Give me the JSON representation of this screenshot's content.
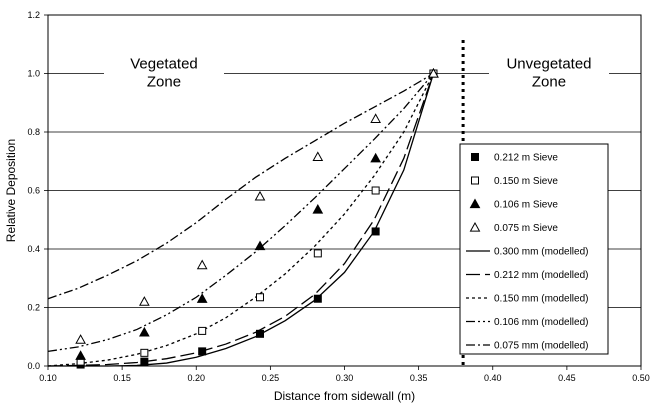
{
  "chart_data": {
    "type": "scatter",
    "xlabel": "Distance from sidewall (m)",
    "ylabel": "Relative Deposition",
    "xlim": [
      0.1,
      0.5
    ],
    "ylim": [
      0,
      1.2
    ],
    "x_ticks": [
      "0.10",
      "0.15",
      "0.20",
      "0.25",
      "0.30",
      "0.35",
      "0.40",
      "0.45",
      "0.50"
    ],
    "y_ticks": [
      "0.0",
      "0.2",
      "0.4",
      "0.6",
      "0.8",
      "1.0",
      "1.2"
    ],
    "grid": "horizontal",
    "legend_position": "right",
    "vegetation_boundary_x": 0.38,
    "zones": {
      "vegetated": [
        "Vegetated",
        "Zone"
      ],
      "unvegetated": [
        "Unvegetated",
        "Zone"
      ]
    },
    "series": [
      {
        "name": "0.212 m Sieve",
        "kind": "points",
        "marker": "filled-square",
        "x": [
          0.122,
          0.165,
          0.204,
          0.243,
          0.282,
          0.321,
          0.36
        ],
        "y": [
          0.005,
          0.015,
          0.05,
          0.11,
          0.23,
          0.46,
          1.0
        ]
      },
      {
        "name": "0.150 m Sieve",
        "kind": "points",
        "marker": "open-square",
        "x": [
          0.122,
          0.165,
          0.204,
          0.243,
          0.282,
          0.321,
          0.36
        ],
        "y": [
          0.015,
          0.045,
          0.12,
          0.235,
          0.385,
          0.6,
          1.0
        ]
      },
      {
        "name": "0.106 m Sieve",
        "kind": "points",
        "marker": "filled-triangle",
        "x": [
          0.122,
          0.165,
          0.204,
          0.243,
          0.282,
          0.321,
          0.36
        ],
        "y": [
          0.035,
          0.115,
          0.23,
          0.41,
          0.535,
          0.71,
          1.0
        ]
      },
      {
        "name": "0.075 m Sieve",
        "kind": "points",
        "marker": "open-triangle",
        "x": [
          0.122,
          0.165,
          0.204,
          0.243,
          0.282,
          0.321,
          0.36
        ],
        "y": [
          0.09,
          0.22,
          0.345,
          0.58,
          0.715,
          0.845,
          1.0
        ]
      },
      {
        "name": "0.300 mm (modelled)",
        "kind": "line",
        "dash": "",
        "x": [
          0.1,
          0.12,
          0.14,
          0.16,
          0.18,
          0.2,
          0.22,
          0.24,
          0.26,
          0.28,
          0.3,
          0.32,
          0.34,
          0.36
        ],
        "y": [
          0.0,
          0.0,
          0.0,
          0.002,
          0.01,
          0.03,
          0.06,
          0.1,
          0.155,
          0.225,
          0.32,
          0.46,
          0.67,
          1.0
        ]
      },
      {
        "name": "0.212 mm (modelled)",
        "kind": "line",
        "dash": "14,5",
        "x": [
          0.1,
          0.12,
          0.14,
          0.16,
          0.18,
          0.2,
          0.22,
          0.24,
          0.26,
          0.28,
          0.3,
          0.32,
          0.34,
          0.36
        ],
        "y": [
          0.0,
          0.002,
          0.005,
          0.012,
          0.025,
          0.045,
          0.075,
          0.115,
          0.17,
          0.245,
          0.35,
          0.5,
          0.71,
          1.0
        ]
      },
      {
        "name": "0.150 mm (modelled)",
        "kind": "line",
        "dash": "3,3",
        "x": [
          0.1,
          0.12,
          0.14,
          0.16,
          0.18,
          0.2,
          0.22,
          0.24,
          0.26,
          0.28,
          0.3,
          0.32,
          0.34,
          0.36
        ],
        "y": [
          0.0,
          0.008,
          0.02,
          0.04,
          0.07,
          0.11,
          0.165,
          0.235,
          0.315,
          0.41,
          0.52,
          0.65,
          0.8,
          1.0
        ]
      },
      {
        "name": "0.106 mm (modelled)",
        "kind": "line",
        "dash": "9,3,2,3,2,3",
        "x": [
          0.1,
          0.12,
          0.14,
          0.16,
          0.18,
          0.2,
          0.22,
          0.24,
          0.26,
          0.28,
          0.3,
          0.32,
          0.34,
          0.36
        ],
        "y": [
          0.05,
          0.065,
          0.09,
          0.125,
          0.175,
          0.235,
          0.31,
          0.39,
          0.48,
          0.575,
          0.675,
          0.775,
          0.88,
          1.0
        ]
      },
      {
        "name": "0.075 mm (modelled)",
        "kind": "line",
        "dash": "9,3,2,3",
        "x": [
          0.1,
          0.12,
          0.14,
          0.16,
          0.18,
          0.2,
          0.22,
          0.24,
          0.26,
          0.28,
          0.3,
          0.32,
          0.34,
          0.36
        ],
        "y": [
          0.23,
          0.265,
          0.31,
          0.36,
          0.42,
          0.49,
          0.57,
          0.645,
          0.71,
          0.77,
          0.83,
          0.885,
          0.94,
          1.0
        ]
      }
    ]
  }
}
